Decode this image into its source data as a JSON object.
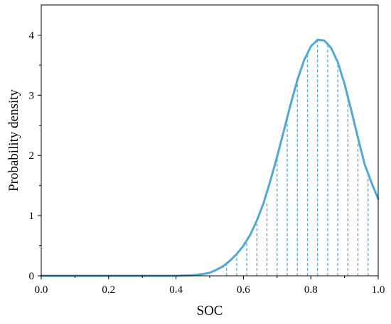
{
  "chart_data": {
    "type": "line",
    "title": "",
    "xlabel": "SOC",
    "ylabel": "Probability density",
    "xlim": [
      0.0,
      1.0
    ],
    "ylim": [
      0,
      4.5
    ],
    "xticks": [
      0.0,
      0.2,
      0.4,
      0.6,
      0.8,
      1.0
    ],
    "xtick_labels": [
      "0.0",
      "0.2",
      "0.4",
      "0.6",
      "0.8",
      "1.0"
    ],
    "yticks": [
      0,
      1,
      2,
      3,
      4
    ],
    "ytick_labels": [
      "0",
      "1",
      "2",
      "3",
      "4"
    ],
    "grid": false,
    "legend": "none",
    "line_color": "#4fa8d8",
    "series": [
      {
        "x": [
          0.0,
          0.4,
          0.45,
          0.48,
          0.5,
          0.52,
          0.54,
          0.56,
          0.58,
          0.6,
          0.62,
          0.64,
          0.66,
          0.68,
          0.7,
          0.72,
          0.74,
          0.76,
          0.78,
          0.8,
          0.82,
          0.84,
          0.86,
          0.88,
          0.9,
          0.92,
          0.94,
          0.96,
          0.98,
          1.0
        ],
        "y": [
          0.0,
          0.0,
          0.01,
          0.03,
          0.05,
          0.1,
          0.16,
          0.25,
          0.36,
          0.5,
          0.68,
          0.92,
          1.21,
          1.58,
          1.98,
          2.41,
          2.85,
          3.25,
          3.58,
          3.81,
          3.92,
          3.91,
          3.79,
          3.55,
          3.19,
          2.75,
          2.29,
          1.85,
          1.55,
          1.28
        ]
      }
    ],
    "dashed_x": [
      0.55,
      0.58,
      0.61,
      0.64,
      0.67,
      0.7,
      0.73,
      0.76,
      0.79,
      0.82,
      0.85,
      0.88,
      0.91,
      0.94,
      0.97
    ],
    "dashed_y": [
      0.2,
      0.36,
      0.58,
      0.86,
      1.24,
      1.98,
      2.63,
      3.25,
      3.67,
      3.92,
      3.85,
      3.55,
      3.0,
      2.29,
      1.7
    ]
  }
}
